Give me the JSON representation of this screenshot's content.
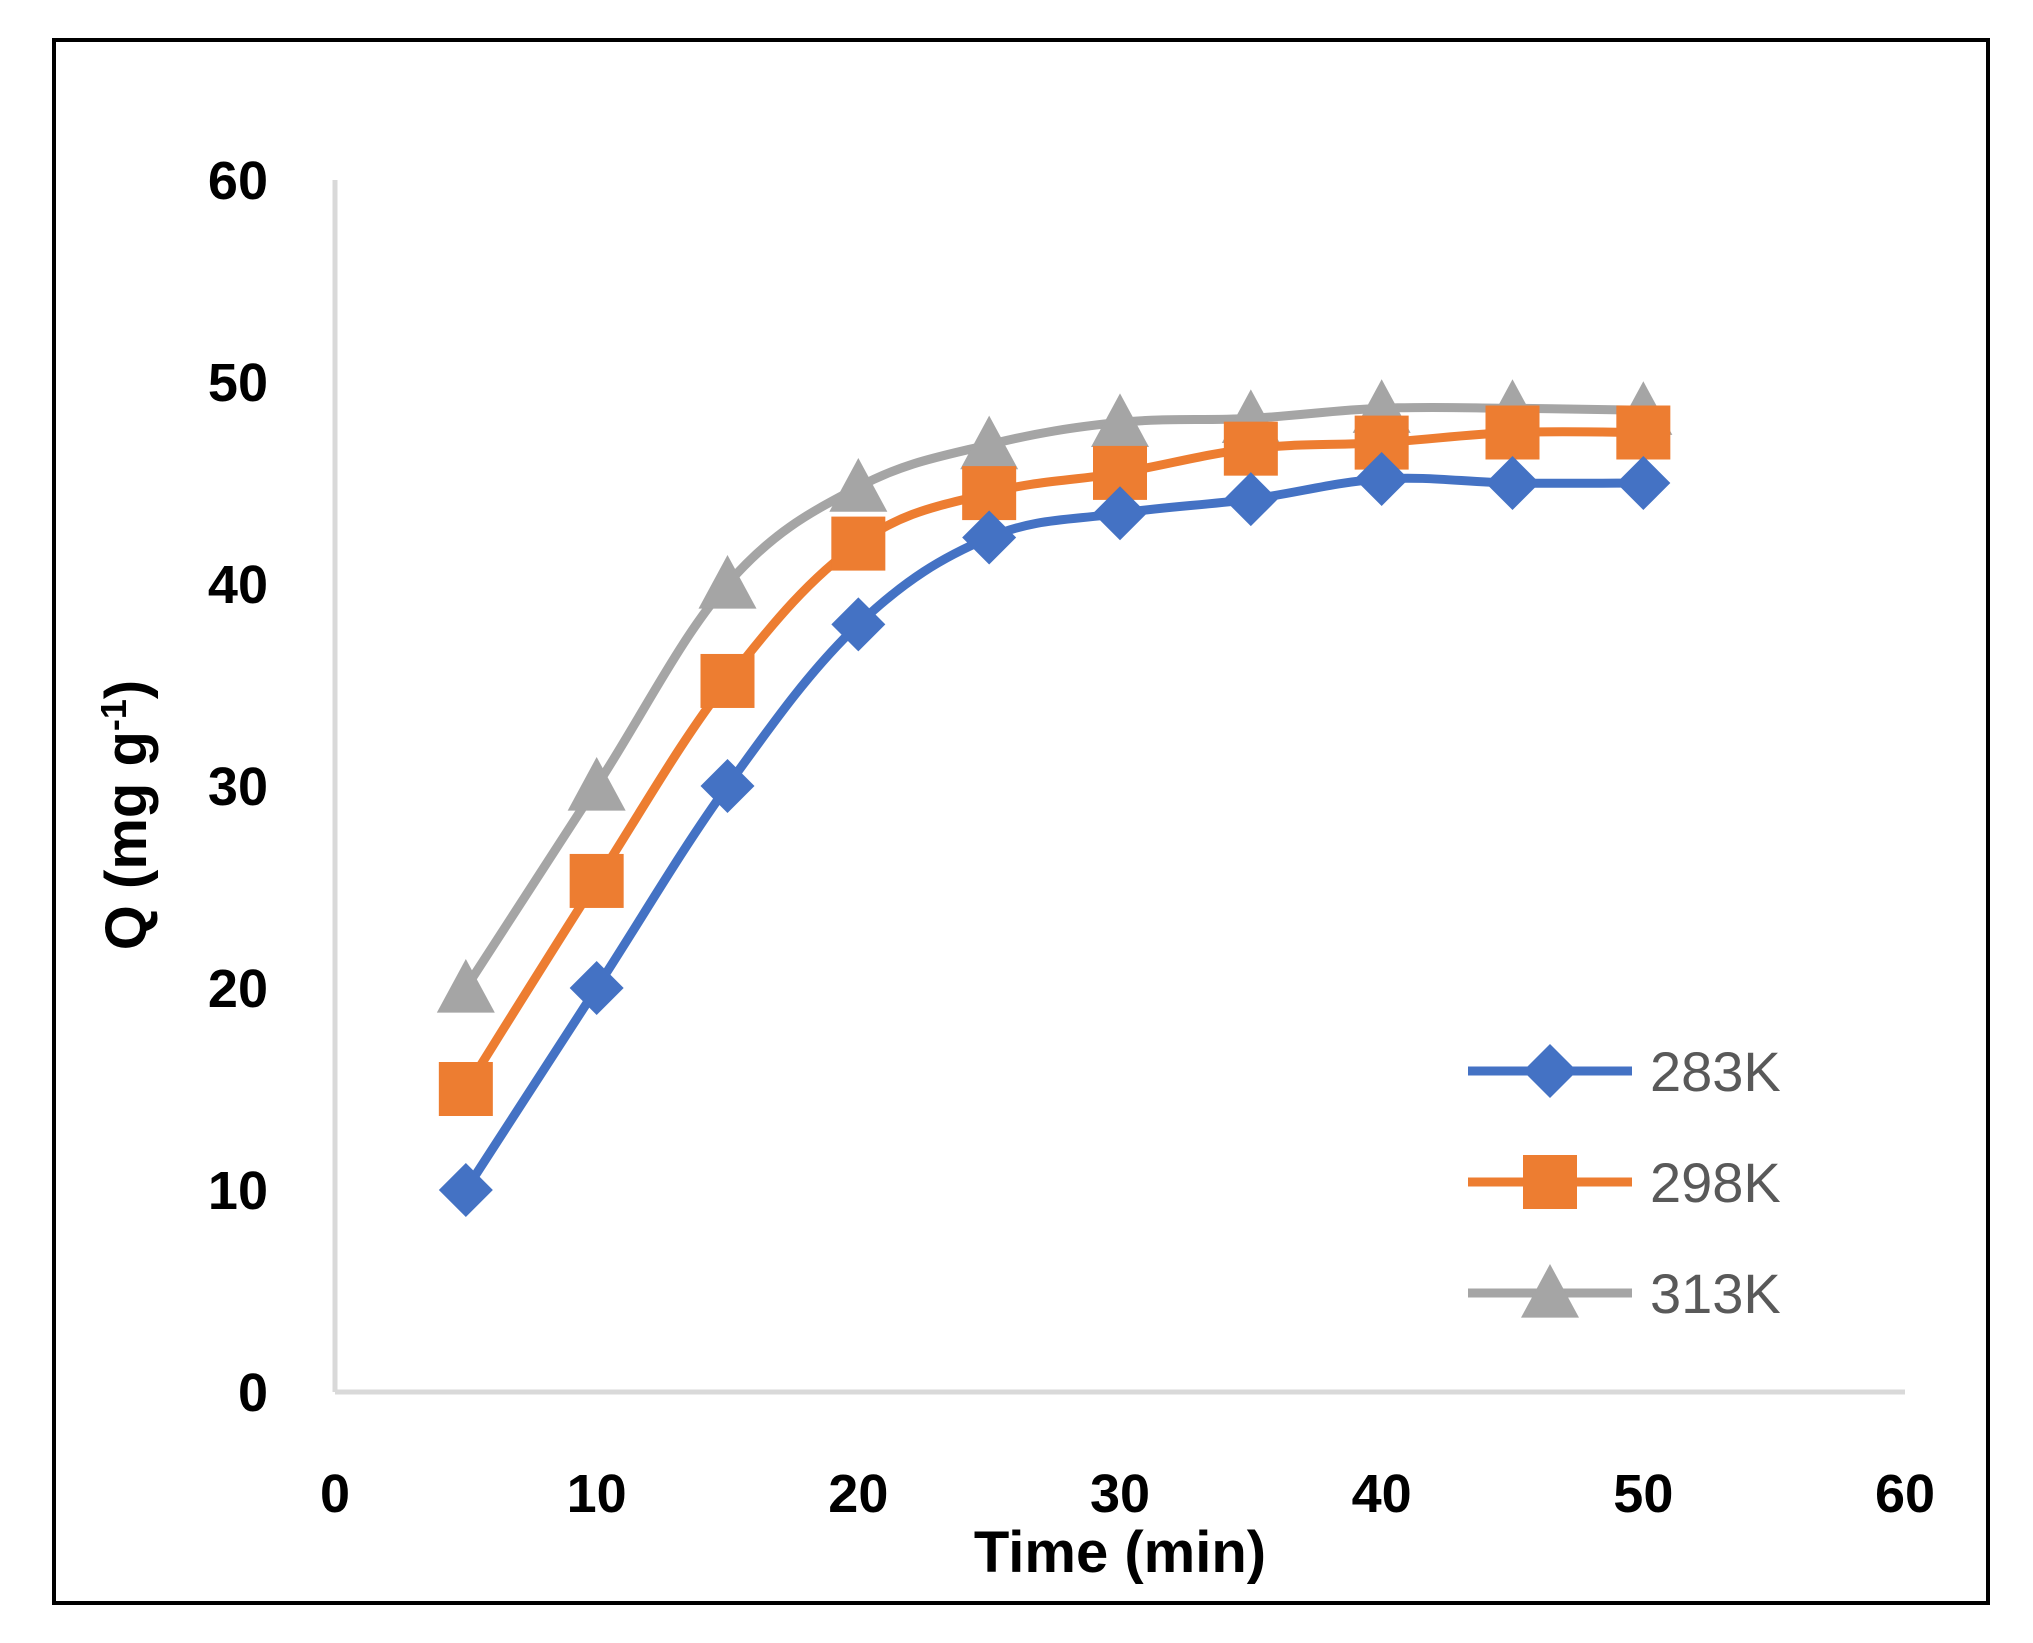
{
  "chart_data": {
    "type": "line",
    "xlabel": "Time (min)",
    "ylabel": "Q (mg g",
    "ylabel_sup": "-1",
    "ylabel_end": ")",
    "xlim": [
      0,
      60
    ],
    "ylim": [
      0,
      60
    ],
    "x_ticks": [
      "0",
      "10",
      "20",
      "30",
      "40",
      "50",
      "60"
    ],
    "y_ticks": [
      "0",
      "10",
      "20",
      "30",
      "40",
      "50",
      "60"
    ],
    "grid": false,
    "legend_position": "bottom-right",
    "x": [
      5,
      10,
      15,
      20,
      25,
      30,
      35,
      40,
      45,
      50
    ],
    "series": [
      {
        "name": "283K",
        "color": "#4472C4",
        "marker": "diamond",
        "values": [
          10,
          20,
          30,
          38,
          42.3,
          43.5,
          44.2,
          45.2,
          45.0,
          45.0
        ]
      },
      {
        "name": "298K",
        "color": "#ED7D31",
        "marker": "square",
        "values": [
          15,
          25.3,
          35.2,
          42,
          44.5,
          45.5,
          46.7,
          47,
          47.5,
          47.5
        ]
      },
      {
        "name": "313K",
        "color": "#A5A5A5",
        "marker": "triangle",
        "values": [
          20,
          30,
          40,
          44.8,
          46.9,
          48,
          48.2,
          48.7,
          48.7,
          48.6
        ]
      }
    ]
  }
}
